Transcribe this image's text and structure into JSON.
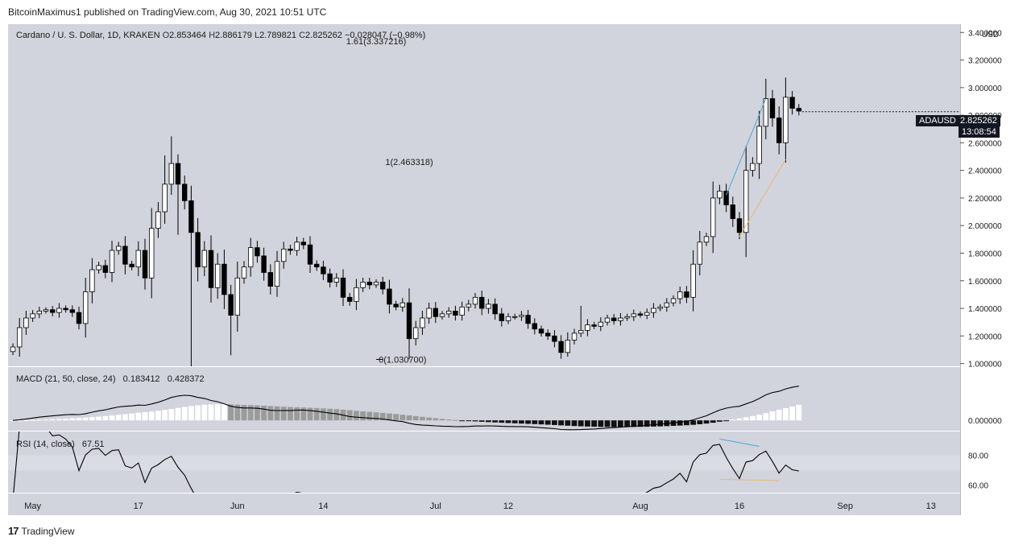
{
  "header": {
    "publisher_line": "BitcoinMaximus1 published on TradingView.com, Aug 30, 2021 10:51 UTC"
  },
  "footer": {
    "logo": "17",
    "brand": "TradingView"
  },
  "colors": {
    "panel_bg": "#d1d4dc",
    "rsi_band": "#dadce3",
    "axis_bg": "#ffffff",
    "up_candle": "#ffffff",
    "down_candle": "#000000",
    "trend_blue": "#4aa8d8",
    "trend_orange": "#e8b878",
    "hist_white": "#ffffff",
    "hist_gray": "#9b9b9b",
    "hist_black": "#111111"
  },
  "chart_data": {
    "type": "candlestick",
    "symbol_title": "Cardano / U. S. Dollar, 1D, KRAKEN",
    "ohlc_legend": {
      "o_label": "O",
      "o": "2.853464",
      "h_label": "H",
      "h": "2.886179",
      "l_label": "L",
      "l": "2.789821",
      "c_label": "C",
      "c": "2.825262",
      "change": "−0.028047 (−0.98%)"
    },
    "currency_label": "USD",
    "price_axis_ticks": [
      "3.400000",
      "3.200000",
      "3.000000",
      "2.800000",
      "2.600000",
      "2.400000",
      "2.200000",
      "2.000000",
      "1.800000",
      "1.600000",
      "1.400000",
      "1.200000",
      "1.000000"
    ],
    "price_axis_values": [
      3.4,
      3.2,
      3.0,
      2.8,
      2.6,
      2.4,
      2.2,
      2.0,
      1.8,
      1.6,
      1.4,
      1.2,
      1.0
    ],
    "ylim": [
      0.98,
      3.46
    ],
    "last_price": {
      "symbol": "ADAUSD",
      "value": "2.825262",
      "countdown": "13:08:54"
    },
    "fib_labels": [
      {
        "text": "1.61(3.337216)",
        "price": 3.337216
      },
      {
        "text": "1(2.463318)",
        "price": 2.463318
      },
      {
        "text": "0(1.030700)",
        "price": 1.0307
      }
    ],
    "x_ticks": [
      {
        "label": "May",
        "index": 3
      },
      {
        "label": "17",
        "index": 19
      },
      {
        "label": "Jun",
        "index": 34
      },
      {
        "label": "14",
        "index": 47
      },
      {
        "label": "Jul",
        "index": 64
      },
      {
        "label": "12",
        "index": 75
      },
      {
        "label": "Aug",
        "index": 95
      },
      {
        "label": "16",
        "index": 110
      },
      {
        "label": "Sep",
        "index": 126
      },
      {
        "label": "13",
        "index": 139
      }
    ],
    "closes": [
      1.12,
      1.26,
      1.33,
      1.36,
      1.38,
      1.39,
      1.37,
      1.4,
      1.39,
      1.37,
      1.29,
      1.52,
      1.68,
      1.71,
      1.66,
      1.82,
      1.85,
      1.72,
      1.7,
      1.82,
      1.62,
      1.98,
      2.1,
      2.3,
      2.45,
      2.3,
      2.18,
      1.95,
      1.7,
      1.82,
      1.55,
      1.72,
      1.5,
      1.35,
      1.62,
      1.7,
      1.84,
      1.78,
      1.66,
      1.56,
      1.74,
      1.83,
      1.82,
      1.88,
      1.86,
      1.72,
      1.7,
      1.65,
      1.59,
      1.62,
      1.48,
      1.45,
      1.55,
      1.59,
      1.57,
      1.59,
      1.54,
      1.43,
      1.41,
      1.44,
      1.18,
      1.26,
      1.33,
      1.4,
      1.34,
      1.36,
      1.38,
      1.35,
      1.41,
      1.43,
      1.48,
      1.4,
      1.43,
      1.36,
      1.31,
      1.34,
      1.34,
      1.35,
      1.29,
      1.25,
      1.22,
      1.2,
      1.16,
      1.08,
      1.17,
      1.22,
      1.24,
      1.28,
      1.27,
      1.3,
      1.33,
      1.31,
      1.33,
      1.34,
      1.36,
      1.35,
      1.37,
      1.4,
      1.41,
      1.44,
      1.47,
      1.52,
      1.48,
      1.72,
      1.88,
      1.92,
      2.2,
      2.25,
      2.15,
      2.05,
      1.95,
      2.4,
      2.45,
      2.72,
      2.92,
      2.78,
      2.6,
      2.93,
      2.85,
      2.83
    ],
    "macd": {
      "label": "MACD (21, 50, close, 24)",
      "macd_value": "0.183412",
      "signal_value": "0.428372",
      "axis_ticks": [
        "0.000000"
      ],
      "axis_values": [
        0.0
      ],
      "ylim": [
        -0.12,
        0.62
      ]
    },
    "rsi": {
      "label": "RSI (14, close)",
      "value": "67.51",
      "axis_ticks": [
        "80.00",
        "60.00"
      ],
      "axis_values": [
        80,
        60
      ],
      "ylim": [
        55,
        96
      ],
      "band": [
        70,
        80
      ]
    }
  }
}
